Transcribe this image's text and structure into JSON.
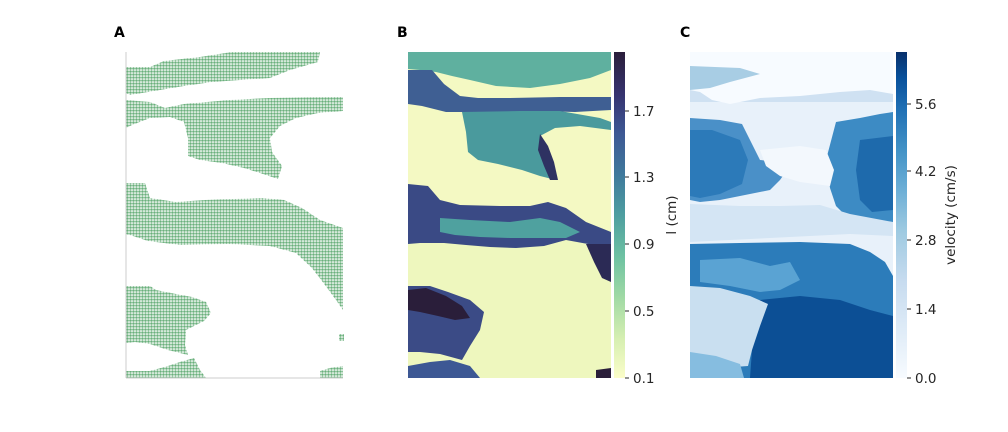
{
  "figure": {
    "panels": [
      {
        "label": "A"
      },
      {
        "label": "B"
      },
      {
        "label": "C"
      }
    ]
  },
  "chart_data": [
    {
      "type": "scatter",
      "panel": "A",
      "description_source": "occupied grid cells",
      "marker_color": "#6ab07c",
      "grid": false,
      "legend": "none",
      "xlim": [
        0,
        72
      ],
      "ylim": [
        0,
        108
      ]
    },
    {
      "type": "heatmap",
      "panel": "B",
      "colormap": [
        "#fbfdc9",
        "#d6efb1",
        "#9fd9a4",
        "#6ec2a2",
        "#4e9ea0",
        "#3f7a9c",
        "#3d5894",
        "#36336f",
        "#2a1e3a"
      ],
      "colorbar": {
        "label": "l (cm)",
        "ticks": [
          "0.1",
          "0.5",
          "0.9",
          "1.3",
          "1.7"
        ],
        "range": [
          0.1,
          2.0
        ]
      }
    },
    {
      "type": "heatmap",
      "panel": "C",
      "colormap": [
        "#f7fbff",
        "#deebf7",
        "#c6dbef",
        "#9ecae1",
        "#6baed6",
        "#4292c6",
        "#2171b5",
        "#08519c",
        "#08306b"
      ],
      "colorbar": {
        "label": "velocity (cm/s)",
        "ticks": [
          "0.0",
          "1.4",
          "2.8",
          "4.2",
          "5.6"
        ],
        "range": [
          0.0,
          6.4
        ]
      }
    }
  ]
}
